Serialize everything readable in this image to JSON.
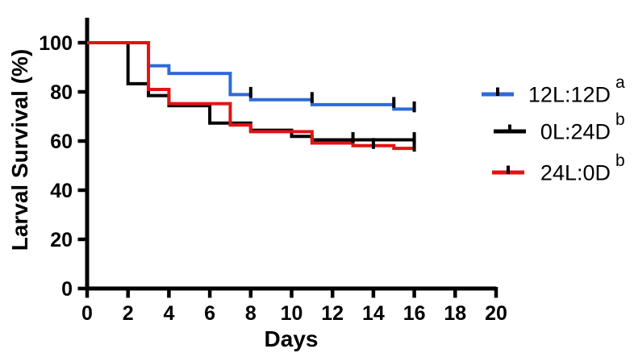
{
  "chart_data": {
    "type": "line",
    "subtype": "kaplan-meier-step-survival",
    "title": "",
    "xlabel": "Days",
    "ylabel": "Larval Survival (%)",
    "xlim": [
      0,
      20
    ],
    "ylim": [
      0,
      100
    ],
    "x_ticks": [
      0,
      2,
      4,
      6,
      8,
      10,
      12,
      14,
      16,
      18,
      20
    ],
    "y_ticks": [
      0,
      20,
      40,
      60,
      80,
      100
    ],
    "grid": false,
    "legend_position": "right-outside",
    "axis_color": "#000000",
    "censor_tick_color": "#000000",
    "series": [
      {
        "name": "12L:12D",
        "significance_letter": "a",
        "color": "#2e6ad8",
        "x": [
          0,
          3,
          4,
          7,
          8,
          11,
          15,
          16
        ],
        "y": [
          100,
          90.6,
          87.5,
          78.9,
          76.8,
          74.8,
          73,
          73
        ],
        "censor_days": [
          8,
          11,
          15,
          16
        ]
      },
      {
        "name": "0L:24D",
        "significance_letter": "b",
        "color": "#000000",
        "x": [
          0,
          2,
          3,
          4,
          6,
          8,
          10,
          11,
          16
        ],
        "y": [
          100,
          83.3,
          78.5,
          74.4,
          67.3,
          64.4,
          61.9,
          60.5,
          60.5
        ],
        "censor_days": [
          13,
          16
        ]
      },
      {
        "name": "24L:0D",
        "significance_letter": "b",
        "color": "#e11414",
        "x": [
          0,
          3,
          4,
          7,
          8,
          11,
          13,
          15,
          16
        ],
        "y": [
          100,
          81,
          75.2,
          66.5,
          63.8,
          59.2,
          58.1,
          57,
          57
        ],
        "censor_days": [
          14,
          16
        ]
      }
    ]
  }
}
